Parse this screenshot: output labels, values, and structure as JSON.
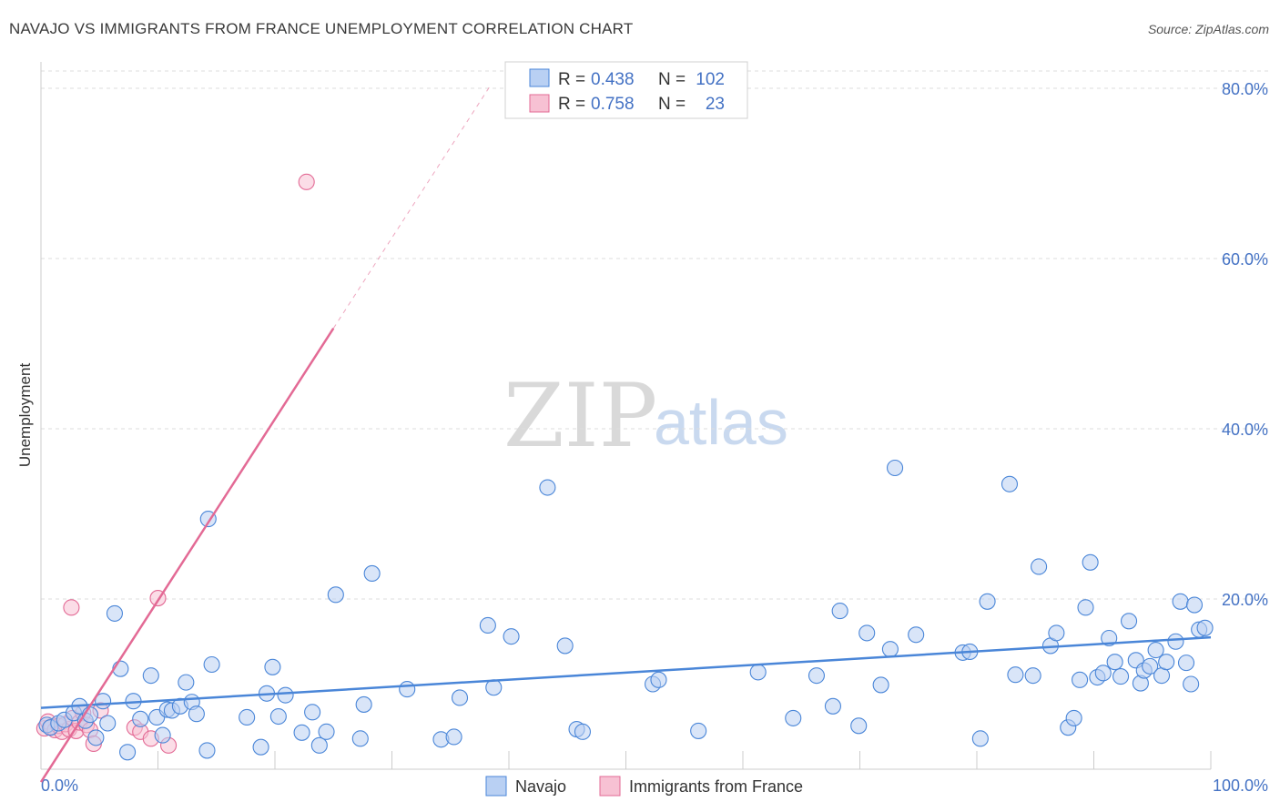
{
  "title": "NAVAJO VS IMMIGRANTS FROM FRANCE UNEMPLOYMENT CORRELATION CHART",
  "source": "Source: ZipAtlas.com",
  "watermark": {
    "zip": "ZIP",
    "atlas": "atlas"
  },
  "colors": {
    "navajo": "#4a86d8",
    "navajo_fill": "#b9d0f3",
    "france": "#e36a95",
    "france_fill": "#f7c1d3",
    "axis_label": "#4472c4",
    "grid": "#dddddd"
  },
  "legend": {
    "rows": [
      {
        "r_label": "R = ",
        "r_value": "0.438",
        "n_label": "N = ",
        "n_value": "102"
      },
      {
        "r_label": "R = ",
        "r_value": "0.758",
        "n_label": "N = ",
        "n_value": "23"
      }
    ]
  },
  "chart_data": {
    "type": "scatter",
    "title": "NAVAJO VS IMMIGRANTS FROM FRANCE UNEMPLOYMENT CORRELATION CHART",
    "xlabel": "",
    "ylabel": "Unemployment",
    "xlim": [
      0,
      100
    ],
    "ylim": [
      0,
      85
    ],
    "x_tick_labels": [
      "0.0%",
      "100.0%"
    ],
    "y_ticks": [
      20,
      40,
      60,
      80
    ],
    "y_tick_labels": [
      "20.0%",
      "40.0%",
      "60.0%",
      "80.0%"
    ],
    "grid": true,
    "legend_position": "top-center",
    "series": [
      {
        "name": "Navajo",
        "R": 0.438,
        "N": 102,
        "trend": {
          "x0": 0,
          "y0": 7.2,
          "x1": 100,
          "y1": 15.5
        },
        "points": [
          [
            0.5,
            5.2
          ],
          [
            0.8,
            4.9
          ],
          [
            1.5,
            5.4
          ],
          [
            2.0,
            5.8
          ],
          [
            2.8,
            6.6
          ],
          [
            3.3,
            7.4
          ],
          [
            3.8,
            5.7
          ],
          [
            4.2,
            6.4
          ],
          [
            4.7,
            3.7
          ],
          [
            5.3,
            8.0
          ],
          [
            5.7,
            5.4
          ],
          [
            6.3,
            18.3
          ],
          [
            6.8,
            11.8
          ],
          [
            7.4,
            2.0
          ],
          [
            7.9,
            8.0
          ],
          [
            8.5,
            5.9
          ],
          [
            9.4,
            11.0
          ],
          [
            9.9,
            6.1
          ],
          [
            10.4,
            4.0
          ],
          [
            10.8,
            7.0
          ],
          [
            11.2,
            6.9
          ],
          [
            11.9,
            7.4
          ],
          [
            12.4,
            10.2
          ],
          [
            12.9,
            7.9
          ],
          [
            13.3,
            6.5
          ],
          [
            14.2,
            2.2
          ],
          [
            14.6,
            12.3
          ],
          [
            14.3,
            29.4
          ],
          [
            17.6,
            6.1
          ],
          [
            18.8,
            2.6
          ],
          [
            19.3,
            8.9
          ],
          [
            19.8,
            12.0
          ],
          [
            20.3,
            6.2
          ],
          [
            20.9,
            8.7
          ],
          [
            22.3,
            4.3
          ],
          [
            23.2,
            6.7
          ],
          [
            23.8,
            2.8
          ],
          [
            24.4,
            4.4
          ],
          [
            25.2,
            20.5
          ],
          [
            27.3,
            3.6
          ],
          [
            27.6,
            7.6
          ],
          [
            28.3,
            23.0
          ],
          [
            31.3,
            9.4
          ],
          [
            34.2,
            3.5
          ],
          [
            35.3,
            3.8
          ],
          [
            35.8,
            8.4
          ],
          [
            38.2,
            16.9
          ],
          [
            38.7,
            9.6
          ],
          [
            40.2,
            15.6
          ],
          [
            43.3,
            33.1
          ],
          [
            44.8,
            14.5
          ],
          [
            45.8,
            4.7
          ],
          [
            46.3,
            4.4
          ],
          [
            52.3,
            10.0
          ],
          [
            52.8,
            10.5
          ],
          [
            56.2,
            4.5
          ],
          [
            61.3,
            11.4
          ],
          [
            64.3,
            6.0
          ],
          [
            66.3,
            11.0
          ],
          [
            67.7,
            7.4
          ],
          [
            68.3,
            18.6
          ],
          [
            69.9,
            5.1
          ],
          [
            71.8,
            9.9
          ],
          [
            72.6,
            14.1
          ],
          [
            73.0,
            35.4
          ],
          [
            74.8,
            15.8
          ],
          [
            78.8,
            13.7
          ],
          [
            79.4,
            13.8
          ],
          [
            80.9,
            19.7
          ],
          [
            80.3,
            3.6
          ],
          [
            83.3,
            11.1
          ],
          [
            82.8,
            33.5
          ],
          [
            84.8,
            11.0
          ],
          [
            85.3,
            23.8
          ],
          [
            86.3,
            14.5
          ],
          [
            86.8,
            16.0
          ],
          [
            87.8,
            4.9
          ],
          [
            88.3,
            6.0
          ],
          [
            88.8,
            10.5
          ],
          [
            89.3,
            19.0
          ],
          [
            89.7,
            24.3
          ],
          [
            90.3,
            10.8
          ],
          [
            90.8,
            11.3
          ],
          [
            91.3,
            15.4
          ],
          [
            91.8,
            12.6
          ],
          [
            92.3,
            10.9
          ],
          [
            93.0,
            17.4
          ],
          [
            93.6,
            12.8
          ],
          [
            94.0,
            10.1
          ],
          [
            94.3,
            11.6
          ],
          [
            94.8,
            12.1
          ],
          [
            95.3,
            14.0
          ],
          [
            95.8,
            11.0
          ],
          [
            96.2,
            12.6
          ],
          [
            97.0,
            15.0
          ],
          [
            97.4,
            19.7
          ],
          [
            97.9,
            12.5
          ],
          [
            98.3,
            10.0
          ],
          [
            98.6,
            19.3
          ],
          [
            99.0,
            16.4
          ],
          [
            99.5,
            16.6
          ],
          [
            70.6,
            16.0
          ]
        ]
      },
      {
        "name": "Immigrants from France",
        "R": 0.758,
        "N": 23,
        "trend": {
          "x0": 0,
          "y0": -1.5,
          "x1": 25.0,
          "y1": 51.8,
          "dashed_to": {
            "x": 38.5,
            "y": 80.5
          }
        },
        "points": [
          [
            0.3,
            4.8
          ],
          [
            0.6,
            5.6
          ],
          [
            0.9,
            5.0
          ],
          [
            1.2,
            4.6
          ],
          [
            1.5,
            5.1
          ],
          [
            1.8,
            4.4
          ],
          [
            2.1,
            5.3
          ],
          [
            2.4,
            4.7
          ],
          [
            2.7,
            6.0
          ],
          [
            3.0,
            4.5
          ],
          [
            3.3,
            5.5
          ],
          [
            3.6,
            6.6
          ],
          [
            3.9,
            5.2
          ],
          [
            4.2,
            4.6
          ],
          [
            4.5,
            3.0
          ],
          [
            5.1,
            6.9
          ],
          [
            2.6,
            19.0
          ],
          [
            8.0,
            4.9
          ],
          [
            8.5,
            4.4
          ],
          [
            9.4,
            3.6
          ],
          [
            10.9,
            2.8
          ],
          [
            22.7,
            69.0
          ],
          [
            10.0,
            20.1
          ]
        ]
      }
    ]
  },
  "bottom_legend": [
    {
      "label": "Navajo"
    },
    {
      "label": "Immigrants from France"
    }
  ]
}
